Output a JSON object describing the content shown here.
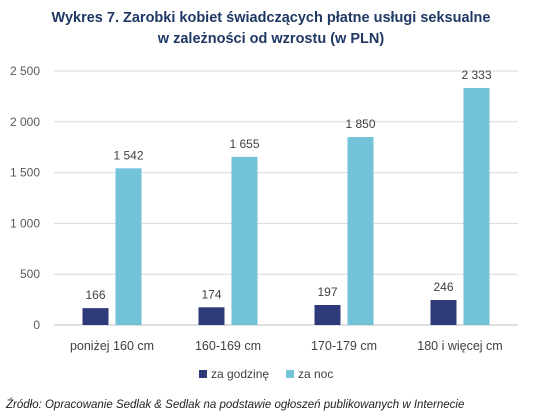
{
  "chart_data": {
    "type": "bar",
    "title_line1": "Wykres 7. Zarobki kobiet świadczących płatne usługi seksualne",
    "title_line2": "w zależności od wzrostu (w PLN)",
    "categories": [
      "poniżej 160 cm",
      "160-169 cm",
      "170-179 cm",
      "180 i więcej cm"
    ],
    "series": [
      {
        "name": "za godzinę",
        "color": "#2e3a7a",
        "values": [
          166,
          174,
          197,
          246
        ],
        "labels": [
          "166",
          "174",
          "197",
          "246"
        ]
      },
      {
        "name": "za noc",
        "color": "#72c2d8",
        "values": [
          1542,
          1655,
          1850,
          2333
        ],
        "labels": [
          "1 542",
          "1 655",
          "1 850",
          "2 333"
        ]
      }
    ],
    "ylim": [
      0,
      2500
    ],
    "yticks": [
      0,
      500,
      1000,
      1500,
      2000,
      2500
    ],
    "ytick_labels": [
      "0",
      "500",
      "1 000",
      "1 500",
      "2 000",
      "2 500"
    ],
    "grid": true,
    "legend_position": "bottom",
    "source": "Źródło: Opracowanie Sedlak & Sedlak na podstawie ogłoszeń publikowanych w Internecie"
  }
}
